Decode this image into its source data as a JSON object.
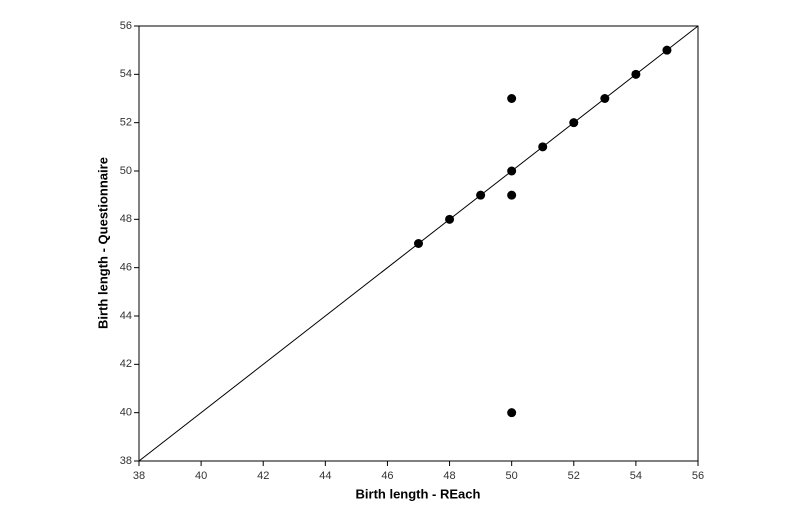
{
  "chart_data": {
    "type": "scatter",
    "x_label": "Birth length - REach",
    "y_label": "Birth length - Questionnaire",
    "x": [
      47,
      48,
      49,
      50,
      50,
      50,
      50,
      51,
      52,
      53,
      54,
      55
    ],
    "values": [
      47,
      48,
      49,
      50,
      53,
      49,
      40,
      51,
      52,
      53,
      54,
      55
    ],
    "color": "#000000",
    "xlim": [
      38,
      56
    ],
    "xticks": [
      38,
      40,
      42,
      44,
      46,
      48,
      50,
      52,
      54,
      56
    ],
    "ylim": [
      38,
      56
    ],
    "yticks": [
      38,
      40,
      42,
      44,
      46,
      48,
      50,
      52,
      54,
      56
    ],
    "grid": false
  }
}
